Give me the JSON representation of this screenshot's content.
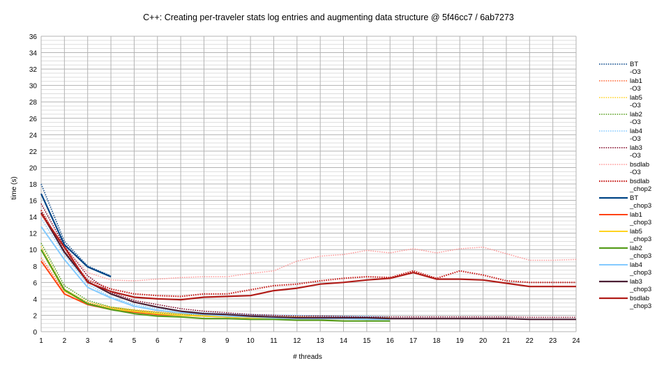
{
  "chart_data": {
    "type": "line",
    "title": "C++: Creating per-traveler stats log entries and augmenting data structure @ 5f46cc7 / 6ab7273",
    "xlabel": "# threads",
    "ylabel": "time (s)",
    "xlim": [
      1,
      24
    ],
    "ylim": [
      0,
      36
    ],
    "y_ticks": [
      0,
      2,
      4,
      6,
      8,
      10,
      12,
      14,
      16,
      18,
      20,
      22,
      24,
      26,
      28,
      30,
      32,
      34,
      36
    ],
    "x_ticks": [
      1,
      2,
      3,
      4,
      5,
      6,
      7,
      8,
      9,
      10,
      11,
      12,
      13,
      14,
      15,
      16,
      17,
      18,
      19,
      20,
      21,
      22,
      23,
      24
    ],
    "grid": true,
    "legend_position": "right",
    "series": [
      {
        "name_line1": "BT",
        "name_line2": "-O3",
        "color": "#2a6099",
        "style": "dotted",
        "width": 1.8,
        "x": [
          1,
          2,
          3,
          4
        ],
        "y": [
          18.0,
          11.0,
          8.0,
          6.8
        ]
      },
      {
        "name_line1": "lab1",
        "name_line2": "-O3",
        "color": "#ff6633",
        "style": "dotted",
        "width": 1.5,
        "x": [
          1,
          2,
          3,
          4,
          5,
          6,
          7,
          8,
          9,
          10,
          11,
          12,
          13,
          14,
          15,
          16
        ],
        "y": [
          9.0,
          4.9,
          3.5,
          2.9,
          2.6,
          2.4,
          2.2,
          2.1,
          2.0,
          1.9,
          1.85,
          1.8,
          1.75,
          1.7,
          1.7,
          1.7
        ]
      },
      {
        "name_line1": "lab5",
        "name_line2": "-O3",
        "color": "#ffd320",
        "style": "dotted",
        "width": 1.5,
        "x": [
          1,
          2,
          3,
          4,
          5,
          6,
          7,
          8,
          9,
          10,
          11,
          12,
          13,
          14,
          15,
          16
        ],
        "y": [
          10.4,
          5.2,
          3.6,
          3.0,
          2.7,
          2.4,
          2.2,
          2.1,
          2.0,
          1.9,
          1.8,
          1.8,
          1.7,
          1.7,
          1.7,
          1.7
        ]
      },
      {
        "name_line1": "lab2",
        "name_line2": "-O3",
        "color": "#579d1c",
        "style": "dotted",
        "width": 1.5,
        "x": [
          1,
          2,
          3,
          4,
          5,
          6,
          7,
          8,
          9,
          10,
          11,
          12,
          13,
          14,
          15,
          16
        ],
        "y": [
          10.8,
          5.6,
          3.8,
          3.0,
          2.6,
          2.3,
          2.1,
          2.0,
          1.9,
          1.8,
          1.8,
          1.7,
          1.7,
          1.6,
          1.6,
          1.6
        ]
      },
      {
        "name_line1": "lab4",
        "name_line2": "-O3",
        "color": "#83caff",
        "style": "dotted",
        "width": 1.5,
        "x": [
          1,
          2,
          3,
          4,
          5,
          6,
          7,
          8,
          9,
          10,
          11,
          12,
          13,
          14,
          15,
          16
        ],
        "y": [
          13.8,
          9.4,
          5.8,
          4.2,
          3.3,
          2.8,
          2.5,
          2.3,
          2.2,
          2.1,
          2.0,
          2.0,
          1.9,
          1.9,
          1.9,
          1.8
        ]
      },
      {
        "name_line1": "lab3",
        "name_line2": "-O3",
        "color": "#7e0021",
        "style": "dotted",
        "width": 1.5,
        "x": [
          1,
          2,
          3,
          4,
          5,
          6,
          7,
          8,
          9,
          10,
          11,
          12,
          13,
          14,
          15,
          16,
          17,
          18,
          19,
          20,
          21,
          22,
          23,
          24
        ],
        "y": [
          15.6,
          10.4,
          6.8,
          4.8,
          3.8,
          3.3,
          2.8,
          2.5,
          2.3,
          2.1,
          2.0,
          1.9,
          1.9,
          1.85,
          1.8,
          1.8,
          1.8,
          1.8,
          1.8,
          1.8,
          1.8,
          1.75,
          1.75,
          1.75
        ]
      },
      {
        "name_line1": "bsdlab",
        "name_line2": "-O3",
        "color": "#ff9999",
        "style": "dotted",
        "width": 1.5,
        "x": [
          1,
          2,
          3,
          4,
          5,
          6,
          7,
          8,
          9,
          10,
          11,
          12,
          13,
          14,
          15,
          16,
          17,
          18,
          19,
          20,
          21,
          22,
          23,
          24
        ],
        "y": [
          14.2,
          10.2,
          7.2,
          6.3,
          6.2,
          6.4,
          6.6,
          6.7,
          6.7,
          7.1,
          7.4,
          8.6,
          9.2,
          9.4,
          9.9,
          9.6,
          10.1,
          9.6,
          10.1,
          10.3,
          9.5,
          8.7,
          8.7,
          8.8
        ]
      },
      {
        "name_line1": "bsdlab",
        "name_line2": "_chop2",
        "color": "#c9211e",
        "style": "dotted",
        "width": 2.2,
        "x": [
          1,
          2,
          3,
          4,
          5,
          6,
          7,
          8,
          9,
          10,
          11,
          12,
          13,
          14,
          15,
          16,
          17,
          18,
          19,
          20,
          21,
          22,
          23,
          24
        ],
        "y": [
          14.8,
          9.8,
          6.3,
          5.2,
          4.6,
          4.4,
          4.3,
          4.6,
          4.6,
          5.1,
          5.6,
          5.8,
          6.2,
          6.5,
          6.7,
          6.6,
          7.4,
          6.5,
          7.4,
          6.9,
          6.2,
          6.0,
          6.0,
          6.0
        ]
      },
      {
        "name_line1": "BT",
        "name_line2": "_chop3",
        "color": "#004586",
        "style": "solid",
        "width": 2.2,
        "x": [
          1,
          2,
          3,
          4
        ],
        "y": [
          16.8,
          10.6,
          7.9,
          6.7
        ]
      },
      {
        "name_line1": "lab1",
        "name_line2": "_chop3",
        "color": "#ff420e",
        "style": "solid",
        "width": 2.0,
        "x": [
          1,
          2,
          3,
          4,
          5,
          6,
          7,
          8,
          9,
          10,
          11,
          12,
          13,
          14,
          15,
          16
        ],
        "y": [
          8.6,
          4.6,
          3.3,
          2.7,
          2.4,
          2.1,
          2.0,
          1.9,
          1.8,
          1.7,
          1.7,
          1.6,
          1.6,
          1.6,
          1.6,
          1.6
        ]
      },
      {
        "name_line1": "lab5",
        "name_line2": "_chop3",
        "color": "#ffd320",
        "style": "solid",
        "width": 2.0,
        "x": [
          1,
          2,
          3,
          4,
          5,
          6,
          7,
          8,
          9,
          10,
          11,
          12,
          13,
          14,
          15,
          16
        ],
        "y": [
          10.0,
          5.0,
          3.4,
          2.8,
          2.5,
          2.2,
          2.0,
          1.9,
          1.8,
          1.7,
          1.7,
          1.6,
          1.6,
          1.6,
          1.6,
          1.6
        ]
      },
      {
        "name_line1": "lab2",
        "name_line2": "_chop3",
        "color": "#579d1c",
        "style": "solid",
        "width": 2.2,
        "x": [
          1,
          2,
          3,
          4,
          5,
          6,
          7,
          8,
          9,
          10,
          11,
          12,
          13,
          14,
          15,
          16
        ],
        "y": [
          10.0,
          5.1,
          3.4,
          2.7,
          2.2,
          1.9,
          1.8,
          1.6,
          1.6,
          1.5,
          1.5,
          1.4,
          1.4,
          1.3,
          1.3,
          1.3
        ]
      },
      {
        "name_line1": "lab4",
        "name_line2": "_chop3",
        "color": "#83caff",
        "style": "solid",
        "width": 2.0,
        "x": [
          1,
          2,
          3,
          4,
          5,
          6,
          7,
          8,
          9,
          10,
          11,
          12,
          13,
          14,
          15,
          16
        ],
        "y": [
          12.8,
          8.8,
          5.4,
          4.1,
          3.1,
          2.6,
          2.3,
          2.1,
          1.9,
          1.8,
          1.7,
          1.6,
          1.6,
          1.6,
          1.5,
          1.5
        ]
      },
      {
        "name_line1": "lab3",
        "name_line2": "_chop3",
        "color": "#4b1f34",
        "style": "solid",
        "width": 2.2,
        "x": [
          1,
          2,
          3,
          4,
          5,
          6,
          7,
          8,
          9,
          10,
          11,
          12,
          13,
          14,
          15,
          16,
          17,
          18,
          19,
          20,
          21,
          22,
          23,
          24
        ],
        "y": [
          14.5,
          9.7,
          6.1,
          4.6,
          3.6,
          3.0,
          2.5,
          2.2,
          2.1,
          1.9,
          1.8,
          1.7,
          1.7,
          1.7,
          1.7,
          1.6,
          1.6,
          1.6,
          1.6,
          1.6,
          1.6,
          1.5,
          1.5,
          1.5
        ]
      },
      {
        "name_line1": "bsdlab",
        "name_line2": "_chop3",
        "color": "#b11c18",
        "style": "solid",
        "width": 2.2,
        "x": [
          1,
          2,
          3,
          4,
          5,
          6,
          7,
          8,
          9,
          10,
          11,
          12,
          13,
          14,
          15,
          16,
          17,
          18,
          19,
          20,
          21,
          22,
          23,
          24
        ],
        "y": [
          14.4,
          10.3,
          6.0,
          4.9,
          4.2,
          4.0,
          3.9,
          4.2,
          4.3,
          4.4,
          5.0,
          5.3,
          5.8,
          6.0,
          6.3,
          6.5,
          7.2,
          6.4,
          6.4,
          6.3,
          5.9,
          5.5,
          5.5,
          5.5
        ]
      }
    ]
  }
}
